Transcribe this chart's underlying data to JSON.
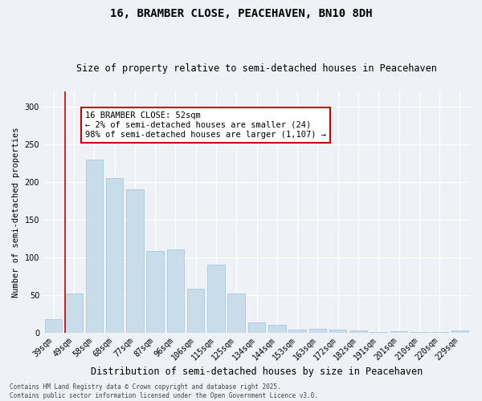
{
  "title": "16, BRAMBER CLOSE, PEACEHAVEN, BN10 8DH",
  "subtitle": "Size of property relative to semi-detached houses in Peacehaven",
  "xlabel": "Distribution of semi-detached houses by size in Peacehaven",
  "ylabel": "Number of semi-detached properties",
  "categories": [
    "39sqm",
    "49sqm",
    "58sqm",
    "68sqm",
    "77sqm",
    "87sqm",
    "96sqm",
    "106sqm",
    "115sqm",
    "125sqm",
    "134sqm",
    "144sqm",
    "153sqm",
    "163sqm",
    "172sqm",
    "182sqm",
    "191sqm",
    "201sqm",
    "210sqm",
    "220sqm",
    "229sqm"
  ],
  "values": [
    18,
    52,
    230,
    205,
    190,
    108,
    110,
    58,
    90,
    52,
    13,
    10,
    4,
    5,
    4,
    3,
    1,
    2,
    1,
    1,
    3
  ],
  "bar_color": "#c9dcea",
  "bar_edge_color": "#a8c8de",
  "vline_color": "#cc0000",
  "vline_x_index": 1,
  "annotation_text": "16 BRAMBER CLOSE: 52sqm\n← 2% of semi-detached houses are smaller (24)\n98% of semi-detached houses are larger (1,107) →",
  "annotation_box_color": "#ffffff",
  "annotation_box_edge": "#cc0000",
  "annotation_fontsize": 7.5,
  "footer_text": "Contains HM Land Registry data © Crown copyright and database right 2025.\nContains public sector information licensed under the Open Government Licence v3.0.",
  "ylim": [
    0,
    320
  ],
  "yticks": [
    0,
    50,
    100,
    150,
    200,
    250,
    300
  ],
  "background_color": "#eef2f6",
  "grid_color": "#ffffff",
  "title_fontsize": 10,
  "subtitle_fontsize": 8.5,
  "xlabel_fontsize": 8.5,
  "ylabel_fontsize": 7.5,
  "tick_fontsize": 7,
  "footer_fontsize": 5.5
}
